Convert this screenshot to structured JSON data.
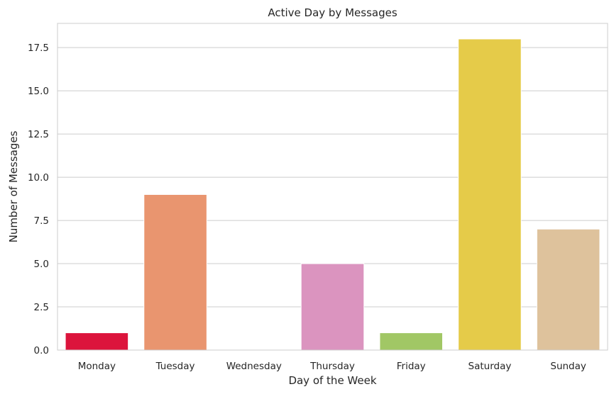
{
  "chart_data": {
    "type": "bar",
    "title": "Active Day by Messages",
    "xlabel": "Day of the Week",
    "ylabel": "Number of Messages",
    "categories": [
      "Monday",
      "Tuesday",
      "Wednesday",
      "Thursday",
      "Friday",
      "Saturday",
      "Sunday"
    ],
    "values": [
      1,
      9,
      0,
      5,
      1,
      18,
      7
    ],
    "colors": [
      "#dc143c",
      "#e9956f",
      "#e9956f",
      "#db94bf",
      "#a1c765",
      "#e5cb49",
      "#dec29c"
    ],
    "ylim": [
      0,
      18.9
    ],
    "yticks": [
      0.0,
      2.5,
      5.0,
      7.5,
      10.0,
      12.5,
      15.0,
      17.5
    ],
    "ytick_labels": [
      "0.0",
      "2.5",
      "5.0",
      "7.5",
      "10.0",
      "12.5",
      "15.0",
      "17.5"
    ],
    "grid": "horizontal",
    "legend": "none"
  }
}
